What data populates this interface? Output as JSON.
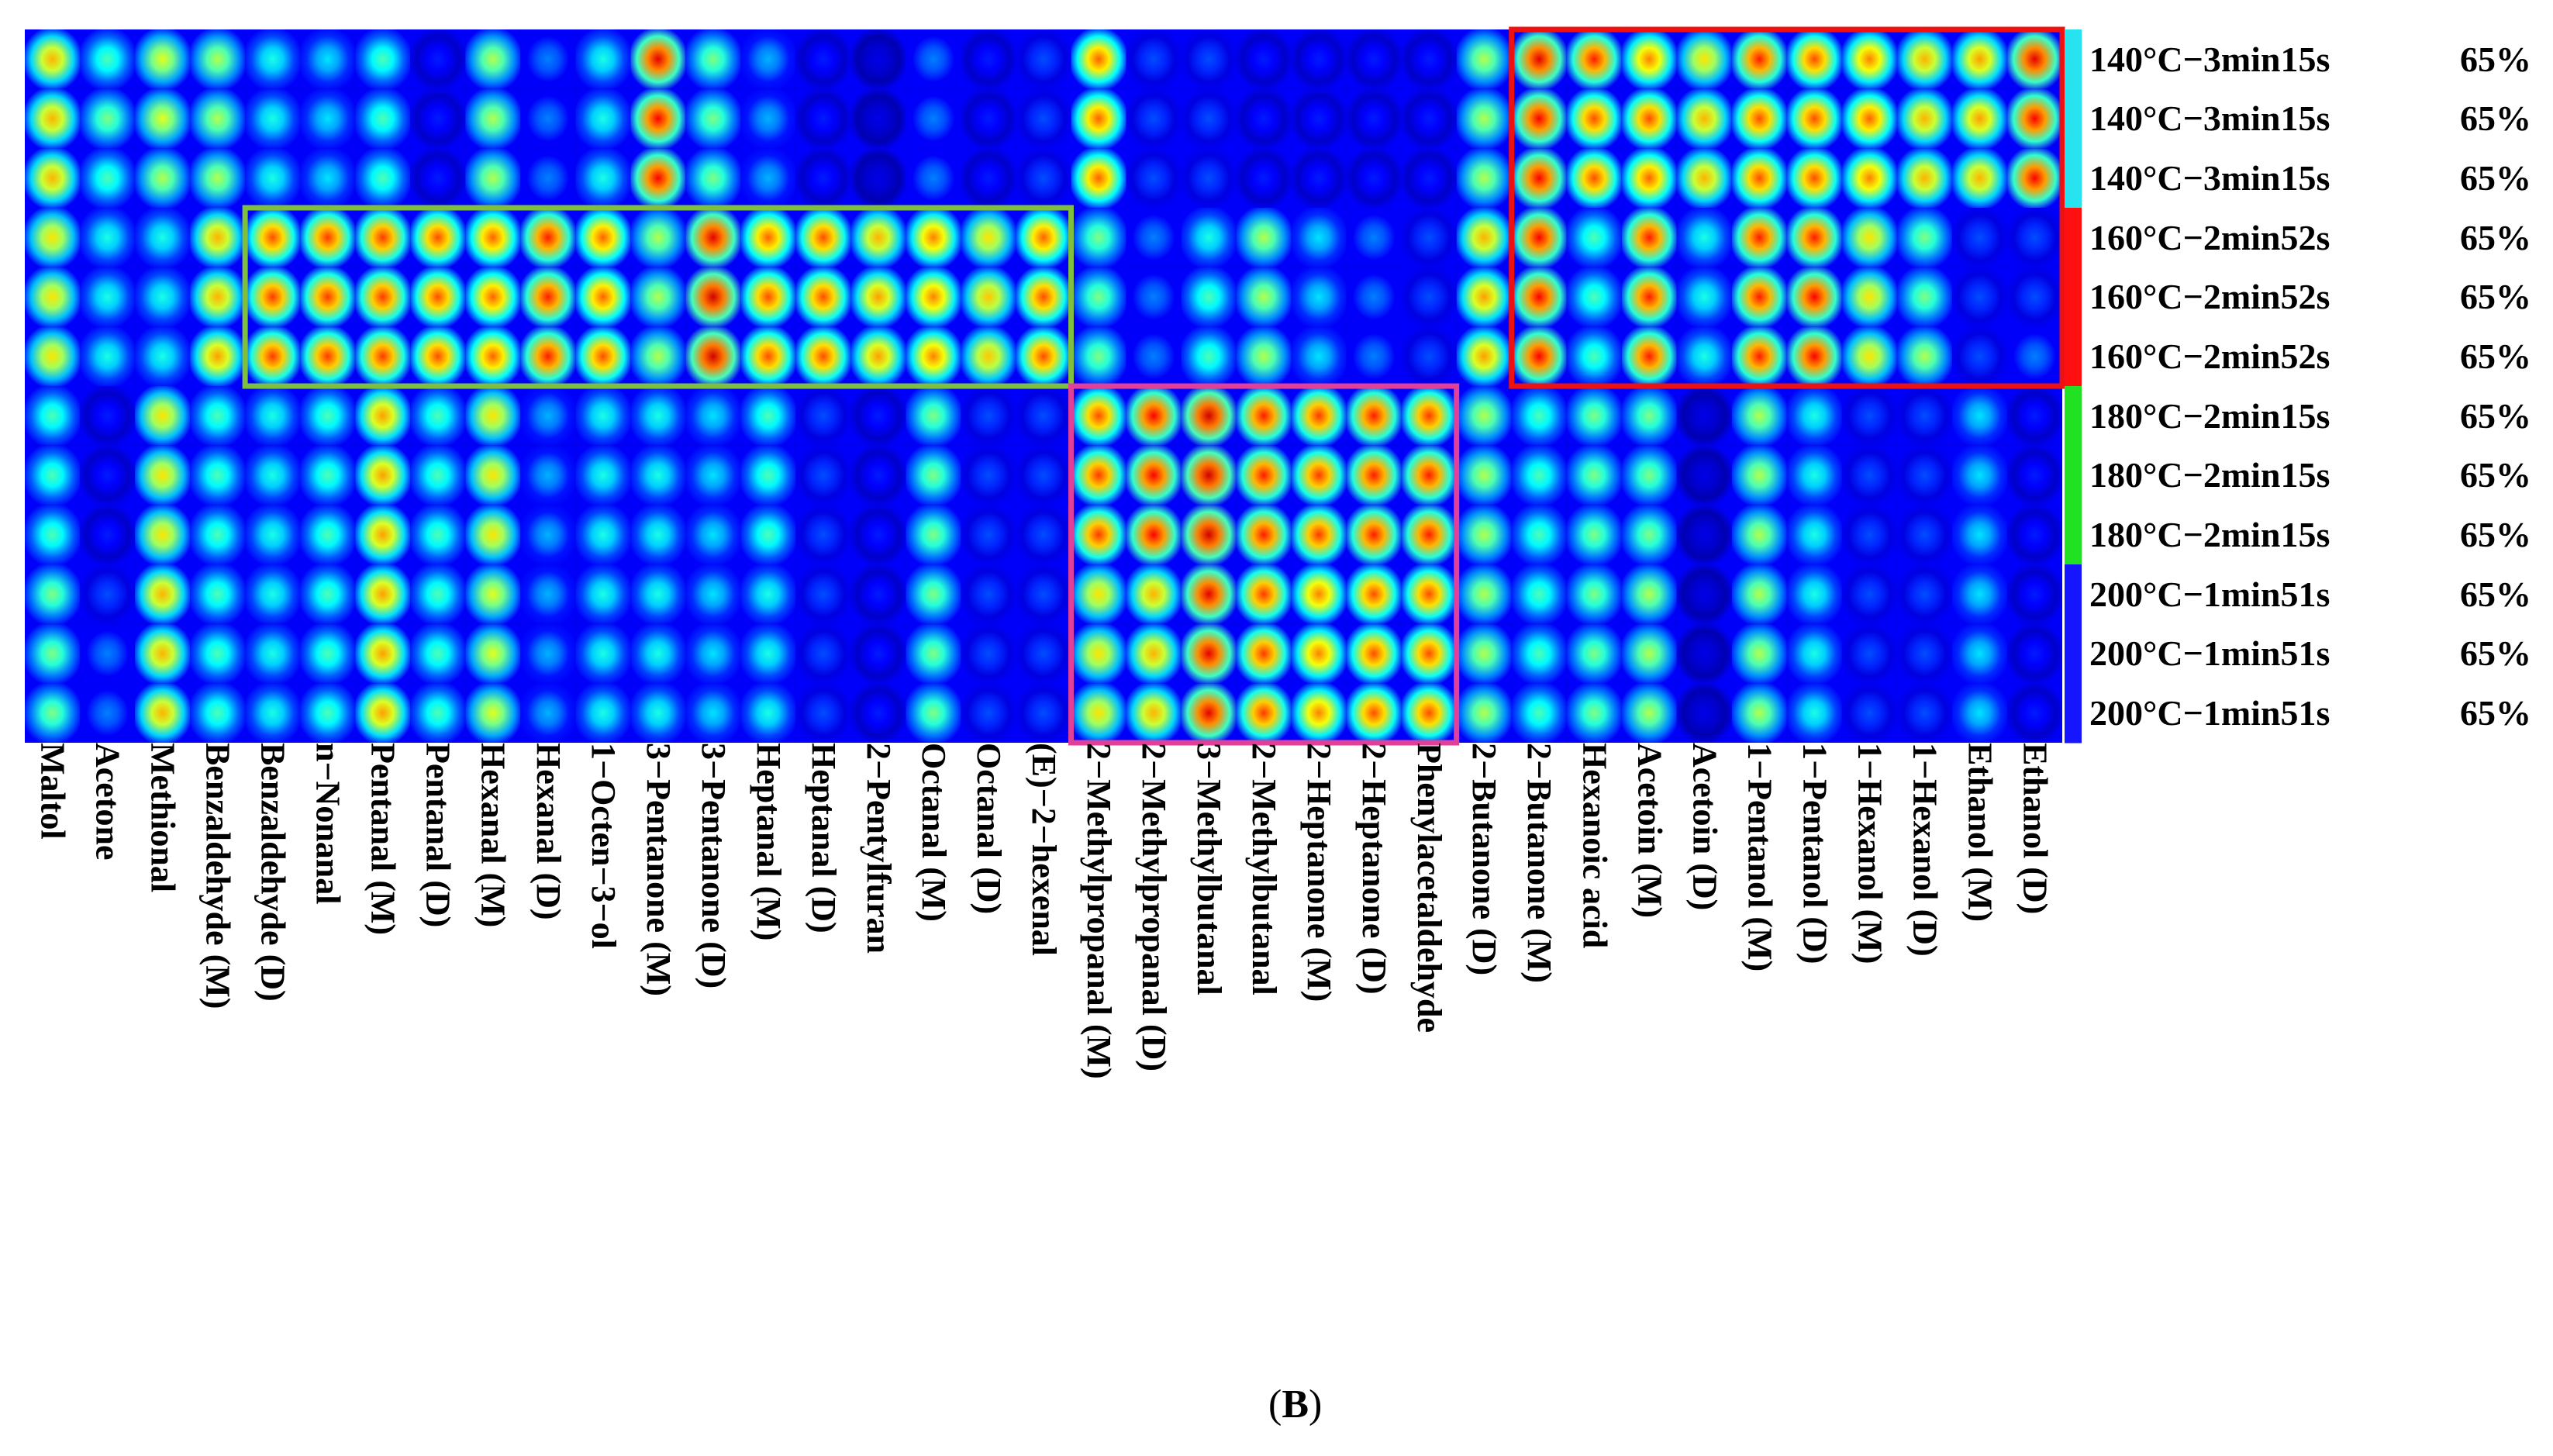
{
  "panel_label": {
    "open": "(",
    "letter": "B",
    "close": ")"
  },
  "chart_data": {
    "type": "heatmap",
    "title": "",
    "columns": [
      "Maltol",
      "Acetone",
      "Methional",
      "Benzaldehyde (M)",
      "Benzaldehyde (D)",
      "n−Nonanal",
      "Pentanal (M)",
      "Pentanal (D)",
      "Hexanal (M)",
      "Hexanal (D)",
      "1−Octen−3−ol",
      "3−Pentanone (M)",
      "3−Pentanone (D)",
      "Heptanal (M)",
      "Heptanal (D)",
      "2−Pentylfuran",
      "Octanal (M)",
      "Octanal (D)",
      "(E)−2−hexenal",
      "2−Methylpropanal (M)",
      "2−Methylpropanal (D)",
      "3−Methylbutanal",
      "2−Methylbutanal",
      "2−Heptanone (M)",
      "2−Heptanone (D)",
      "Phenylacetaldehyde",
      "2−Butanone (D)",
      "2−Butanone (M)",
      "Hexanoic acid",
      "Acetoin (M)",
      "Acetoin (D)",
      "1−Pentanol (M)",
      "1−Pentanol (D)",
      "1−Hexanol (M)",
      "1−Hexanol (D)",
      "Ethanol (M)",
      "Ethanol (D)"
    ],
    "rows": [
      {
        "condition": "140°C−3min15s",
        "humidity": "65%",
        "group": "140"
      },
      {
        "condition": "140°C−3min15s",
        "humidity": "65%",
        "group": "140"
      },
      {
        "condition": "140°C−3min15s",
        "humidity": "65%",
        "group": "140"
      },
      {
        "condition": "160°C−2min52s",
        "humidity": "65%",
        "group": "160"
      },
      {
        "condition": "160°C−2min52s",
        "humidity": "65%",
        "group": "160"
      },
      {
        "condition": "160°C−2min52s",
        "humidity": "65%",
        "group": "160"
      },
      {
        "condition": "180°C−2min15s",
        "humidity": "65%",
        "group": "180"
      },
      {
        "condition": "180°C−2min15s",
        "humidity": "65%",
        "group": "180"
      },
      {
        "condition": "180°C−2min15s",
        "humidity": "65%",
        "group": "180"
      },
      {
        "condition": "200°C−1min51s",
        "humidity": "65%",
        "group": "200"
      },
      {
        "condition": "200°C−1min51s",
        "humidity": "65%",
        "group": "200"
      },
      {
        "condition": "200°C−1min51s",
        "humidity": "65%",
        "group": "200"
      }
    ],
    "group_colors": {
      "140": "#27e3f0",
      "160": "#ff1010",
      "180": "#22e022",
      "200": "#1515ff"
    },
    "colormap": "jet",
    "highlight_boxes": [
      {
        "color": "#7fbf3f",
        "row_start": 3,
        "row_end": 5,
        "col_start": 4,
        "col_end": 18
      },
      {
        "color": "#e0409a",
        "row_start": 6,
        "row_end": 11,
        "col_start": 19,
        "col_end": 25
      },
      {
        "color": "#ee1111",
        "row_start": 0,
        "row_end": 5,
        "col_start": 27,
        "col_end": 36
      }
    ],
    "values": [
      [
        0.7,
        0.45,
        0.6,
        0.55,
        0.4,
        0.35,
        0.45,
        0.15,
        0.55,
        0.25,
        0.4,
        0.9,
        0.5,
        0.3,
        0.15,
        0.1,
        0.25,
        0.15,
        0.2,
        0.78,
        0.2,
        0.2,
        0.15,
        0.15,
        0.15,
        0.15,
        0.55,
        0.9,
        0.85,
        0.75,
        0.65,
        0.85,
        0.8,
        0.75,
        0.7,
        0.72,
        0.9
      ],
      [
        0.7,
        0.5,
        0.6,
        0.55,
        0.4,
        0.35,
        0.45,
        0.15,
        0.55,
        0.25,
        0.4,
        0.88,
        0.5,
        0.3,
        0.15,
        0.1,
        0.25,
        0.15,
        0.2,
        0.78,
        0.2,
        0.2,
        0.15,
        0.15,
        0.15,
        0.15,
        0.55,
        0.88,
        0.8,
        0.8,
        0.7,
        0.8,
        0.8,
        0.78,
        0.7,
        0.72,
        0.88
      ],
      [
        0.7,
        0.45,
        0.55,
        0.55,
        0.4,
        0.35,
        0.45,
        0.15,
        0.55,
        0.25,
        0.4,
        0.88,
        0.5,
        0.3,
        0.15,
        0.1,
        0.25,
        0.15,
        0.2,
        0.78,
        0.2,
        0.2,
        0.15,
        0.15,
        0.15,
        0.15,
        0.55,
        0.88,
        0.8,
        0.78,
        0.7,
        0.8,
        0.8,
        0.75,
        0.7,
        0.7,
        0.88
      ],
      [
        0.65,
        0.4,
        0.4,
        0.7,
        0.8,
        0.82,
        0.82,
        0.8,
        0.78,
        0.85,
        0.78,
        0.55,
        0.9,
        0.78,
        0.8,
        0.7,
        0.75,
        0.65,
        0.78,
        0.5,
        0.25,
        0.4,
        0.55,
        0.35,
        0.25,
        0.2,
        0.7,
        0.88,
        0.45,
        0.85,
        0.4,
        0.85,
        0.85,
        0.65,
        0.5,
        0.2,
        0.2
      ],
      [
        0.65,
        0.4,
        0.4,
        0.7,
        0.82,
        0.82,
        0.82,
        0.8,
        0.78,
        0.85,
        0.78,
        0.55,
        0.92,
        0.8,
        0.8,
        0.72,
        0.75,
        0.68,
        0.8,
        0.5,
        0.25,
        0.45,
        0.55,
        0.35,
        0.25,
        0.2,
        0.72,
        0.88,
        0.45,
        0.85,
        0.4,
        0.85,
        0.88,
        0.65,
        0.5,
        0.2,
        0.2
      ],
      [
        0.65,
        0.4,
        0.4,
        0.72,
        0.82,
        0.82,
        0.82,
        0.8,
        0.78,
        0.85,
        0.8,
        0.55,
        0.92,
        0.8,
        0.8,
        0.72,
        0.75,
        0.68,
        0.8,
        0.5,
        0.25,
        0.45,
        0.55,
        0.35,
        0.25,
        0.2,
        0.72,
        0.88,
        0.45,
        0.85,
        0.4,
        0.85,
        0.88,
        0.65,
        0.55,
        0.2,
        0.25
      ],
      [
        0.45,
        0.15,
        0.65,
        0.45,
        0.4,
        0.45,
        0.72,
        0.45,
        0.65,
        0.3,
        0.4,
        0.4,
        0.35,
        0.45,
        0.2,
        0.15,
        0.5,
        0.2,
        0.2,
        0.8,
        0.88,
        0.92,
        0.85,
        0.82,
        0.85,
        0.82,
        0.55,
        0.45,
        0.5,
        0.5,
        0.1,
        0.55,
        0.4,
        0.2,
        0.2,
        0.35,
        0.15
      ],
      [
        0.45,
        0.15,
        0.65,
        0.45,
        0.4,
        0.45,
        0.72,
        0.45,
        0.65,
        0.3,
        0.4,
        0.4,
        0.35,
        0.45,
        0.2,
        0.15,
        0.5,
        0.2,
        0.2,
        0.82,
        0.88,
        0.92,
        0.85,
        0.82,
        0.85,
        0.85,
        0.55,
        0.45,
        0.5,
        0.5,
        0.1,
        0.55,
        0.4,
        0.2,
        0.2,
        0.35,
        0.15
      ],
      [
        0.45,
        0.15,
        0.65,
        0.45,
        0.4,
        0.45,
        0.72,
        0.45,
        0.65,
        0.3,
        0.4,
        0.4,
        0.35,
        0.45,
        0.2,
        0.15,
        0.5,
        0.2,
        0.2,
        0.82,
        0.88,
        0.92,
        0.85,
        0.82,
        0.85,
        0.85,
        0.55,
        0.45,
        0.5,
        0.5,
        0.1,
        0.55,
        0.4,
        0.2,
        0.2,
        0.35,
        0.15
      ],
      [
        0.5,
        0.2,
        0.7,
        0.45,
        0.4,
        0.45,
        0.72,
        0.45,
        0.6,
        0.3,
        0.4,
        0.4,
        0.35,
        0.4,
        0.2,
        0.15,
        0.5,
        0.2,
        0.2,
        0.65,
        0.7,
        0.9,
        0.82,
        0.75,
        0.8,
        0.8,
        0.55,
        0.45,
        0.5,
        0.55,
        0.1,
        0.55,
        0.4,
        0.2,
        0.2,
        0.35,
        0.15
      ],
      [
        0.5,
        0.25,
        0.7,
        0.45,
        0.4,
        0.45,
        0.72,
        0.45,
        0.6,
        0.3,
        0.4,
        0.4,
        0.35,
        0.4,
        0.2,
        0.15,
        0.5,
        0.2,
        0.2,
        0.65,
        0.7,
        0.9,
        0.82,
        0.75,
        0.8,
        0.8,
        0.55,
        0.45,
        0.5,
        0.55,
        0.1,
        0.55,
        0.4,
        0.2,
        0.2,
        0.35,
        0.15
      ],
      [
        0.5,
        0.25,
        0.7,
        0.45,
        0.4,
        0.45,
        0.72,
        0.45,
        0.6,
        0.3,
        0.4,
        0.4,
        0.35,
        0.4,
        0.2,
        0.15,
        0.5,
        0.2,
        0.2,
        0.65,
        0.7,
        0.9,
        0.82,
        0.75,
        0.8,
        0.8,
        0.55,
        0.45,
        0.5,
        0.55,
        0.1,
        0.55,
        0.4,
        0.2,
        0.2,
        0.35,
        0.15
      ]
    ]
  }
}
